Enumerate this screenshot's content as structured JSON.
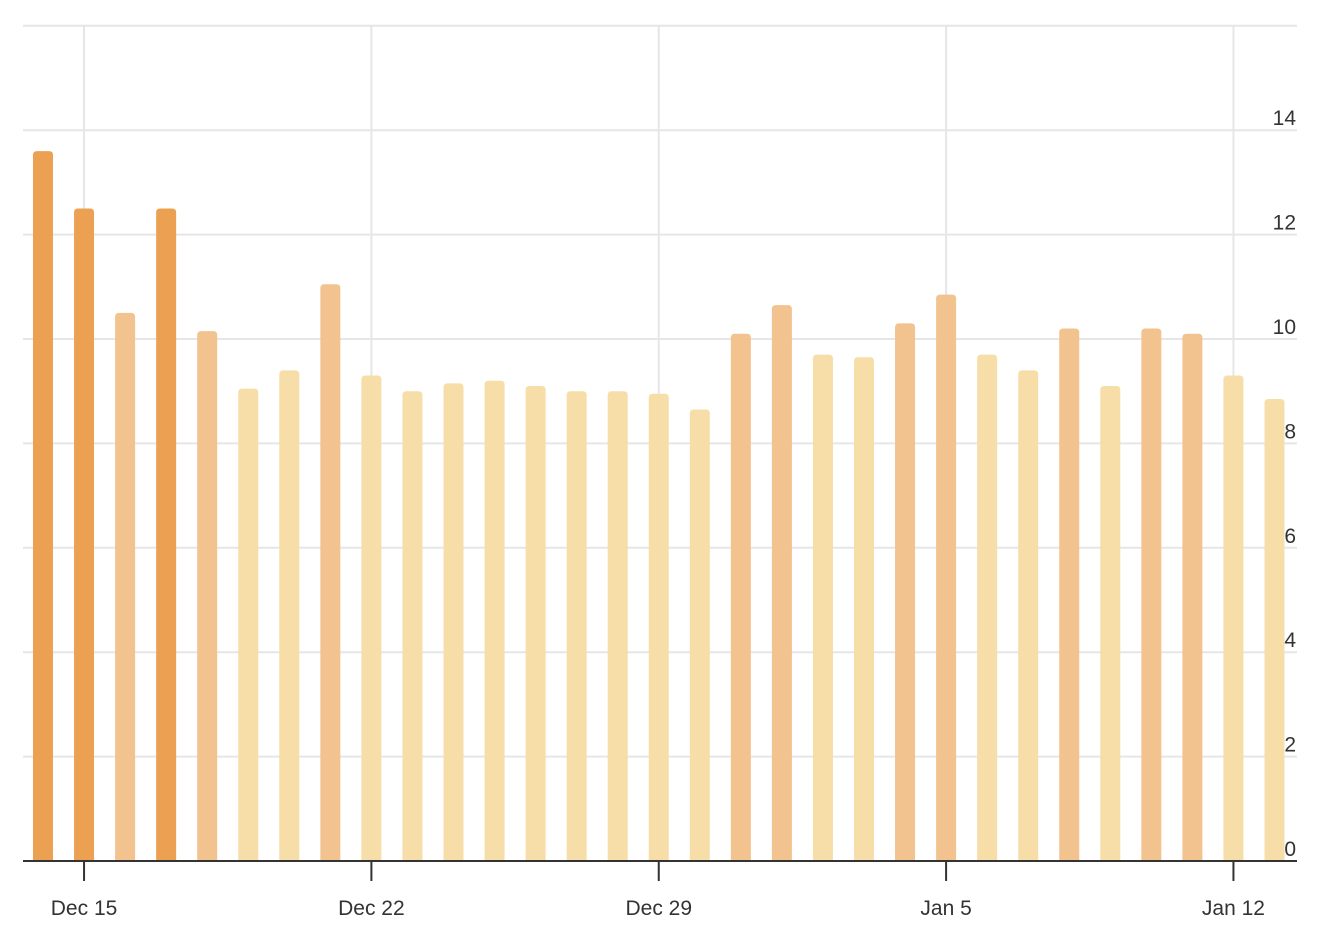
{
  "chart_data": {
    "type": "bar",
    "title": "",
    "xlabel": "",
    "ylabel": "",
    "ylim": [
      0,
      16
    ],
    "yticks": [
      0,
      2,
      4,
      6,
      8,
      10,
      12,
      14
    ],
    "y_axis_side": "right",
    "grid": true,
    "legend": "none",
    "x_ticks": [
      {
        "label": "Dec 15",
        "date": "2023-12-15"
      },
      {
        "label": "Dec 22",
        "date": "2023-12-22"
      },
      {
        "label": "Dec 29",
        "date": "2023-12-29"
      },
      {
        "label": "Jan 5",
        "date": "2024-01-05"
      },
      {
        "label": "Jan 12",
        "date": "2024-01-12"
      }
    ],
    "color_scale": {
      "low": "#f7dda8",
      "mid": "#f2c28f",
      "high": "#eba052"
    },
    "bars": [
      {
        "date": "2023-12-14",
        "value": 13.6,
        "level": "high"
      },
      {
        "date": "2023-12-15",
        "value": 12.5,
        "level": "high"
      },
      {
        "date": "2023-12-16",
        "value": 10.5,
        "level": "mid"
      },
      {
        "date": "2023-12-17",
        "value": 12.5,
        "level": "high"
      },
      {
        "date": "2023-12-18",
        "value": 10.15,
        "level": "mid"
      },
      {
        "date": "2023-12-19",
        "value": 9.05,
        "level": "low"
      },
      {
        "date": "2023-12-20",
        "value": 9.4,
        "level": "low"
      },
      {
        "date": "2023-12-21",
        "value": 11.05,
        "level": "mid"
      },
      {
        "date": "2023-12-22",
        "value": 9.3,
        "level": "low"
      },
      {
        "date": "2023-12-23",
        "value": 9.0,
        "level": "low"
      },
      {
        "date": "2023-12-24",
        "value": 9.15,
        "level": "low"
      },
      {
        "date": "2023-12-25",
        "value": 9.2,
        "level": "low"
      },
      {
        "date": "2023-12-26",
        "value": 9.1,
        "level": "low"
      },
      {
        "date": "2023-12-27",
        "value": 9.0,
        "level": "low"
      },
      {
        "date": "2023-12-28",
        "value": 9.0,
        "level": "low"
      },
      {
        "date": "2023-12-29",
        "value": 8.95,
        "level": "low"
      },
      {
        "date": "2023-12-30",
        "value": 8.65,
        "level": "low"
      },
      {
        "date": "2023-12-31",
        "value": 10.1,
        "level": "mid"
      },
      {
        "date": "2024-01-01",
        "value": 10.65,
        "level": "mid"
      },
      {
        "date": "2024-01-02",
        "value": 9.7,
        "level": "low"
      },
      {
        "date": "2024-01-03",
        "value": 9.65,
        "level": "low"
      },
      {
        "date": "2024-01-04",
        "value": 10.3,
        "level": "mid"
      },
      {
        "date": "2024-01-05",
        "value": 10.85,
        "level": "mid"
      },
      {
        "date": "2024-01-06",
        "value": 9.7,
        "level": "low"
      },
      {
        "date": "2024-01-07",
        "value": 9.4,
        "level": "low"
      },
      {
        "date": "2024-01-08",
        "value": 10.2,
        "level": "mid"
      },
      {
        "date": "2024-01-09",
        "value": 9.1,
        "level": "low"
      },
      {
        "date": "2024-01-10",
        "value": 10.2,
        "level": "mid"
      },
      {
        "date": "2024-01-11",
        "value": 10.1,
        "level": "mid"
      },
      {
        "date": "2024-01-12",
        "value": 9.3,
        "level": "low"
      },
      {
        "date": "2024-01-13",
        "value": 8.85,
        "level": "low"
      }
    ]
  }
}
